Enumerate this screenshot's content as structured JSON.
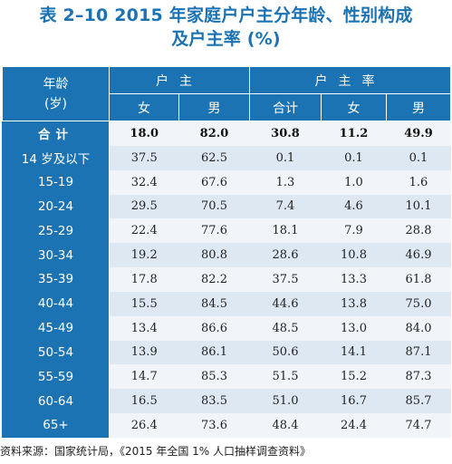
{
  "title": {
    "line1": "表 2–10  2015 年家庭户户主分年龄、性别构成",
    "line2": "及户主率 (%)"
  },
  "header": {
    "age_label": "年龄\n(岁)",
    "group_householder": "户主",
    "group_rate": "户主率",
    "cols": [
      "女",
      "男",
      "合计",
      "女",
      "男"
    ]
  },
  "rows": [
    {
      "label": "合计",
      "values": [
        "18.0",
        "82.0",
        "30.8",
        "11.2",
        "49.9"
      ]
    },
    {
      "label": "14 岁及以下",
      "values": [
        "37.5",
        "62.5",
        "0.1",
        "0.1",
        "0.1"
      ]
    },
    {
      "label": "15-19",
      "values": [
        "32.4",
        "67.6",
        "1.3",
        "1.0",
        "1.6"
      ]
    },
    {
      "label": "20-24",
      "values": [
        "29.5",
        "70.5",
        "7.4",
        "4.6",
        "10.1"
      ]
    },
    {
      "label": "25-29",
      "values": [
        "22.4",
        "77.6",
        "18.1",
        "7.9",
        "28.8"
      ]
    },
    {
      "label": "30-34",
      "values": [
        "19.2",
        "80.8",
        "28.6",
        "10.8",
        "46.9"
      ]
    },
    {
      "label": "35-39",
      "values": [
        "17.8",
        "82.2",
        "37.5",
        "13.3",
        "61.8"
      ]
    },
    {
      "label": "40-44",
      "values": [
        "15.5",
        "84.5",
        "44.6",
        "13.8",
        "75.0"
      ]
    },
    {
      "label": "45-49",
      "values": [
        "13.4",
        "86.6",
        "48.5",
        "13.0",
        "84.0"
      ]
    },
    {
      "label": "50-54",
      "values": [
        "13.9",
        "86.1",
        "50.6",
        "14.1",
        "87.1"
      ]
    },
    {
      "label": "55-59",
      "values": [
        "14.7",
        "85.3",
        "51.5",
        "15.2",
        "87.3"
      ]
    },
    {
      "label": "60-64",
      "values": [
        "16.5",
        "83.5",
        "51.0",
        "16.7",
        "85.7"
      ]
    },
    {
      "label": "65+",
      "values": [
        "26.4",
        "73.6",
        "48.4",
        "24.4",
        "74.7"
      ]
    }
  ],
  "source": "资料来源：国家统计局，《2015 年全国 1% 人口抽样调查资料》",
  "colors": {
    "header_blue": "#1b73b4",
    "row_light": "#f1f5fa",
    "row_dark": "#dde8f3"
  }
}
